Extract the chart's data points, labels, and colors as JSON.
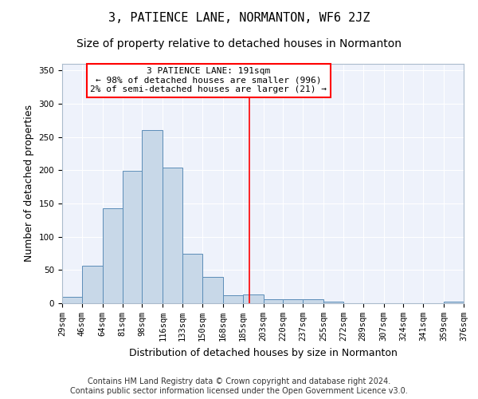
{
  "title": "3, PATIENCE LANE, NORMANTON, WF6 2JZ",
  "subtitle": "Size of property relative to detached houses in Normanton",
  "xlabel": "Distribution of detached houses by size in Normanton",
  "ylabel": "Number of detached properties",
  "bar_color": "#c8d8e8",
  "bar_edge_color": "#5b8db8",
  "background_color": "#eef2fb",
  "grid_color": "#ffffff",
  "vline_x": 191,
  "vline_color": "red",
  "annotation_text": "3 PATIENCE LANE: 191sqm\n← 98% of detached houses are smaller (996)\n2% of semi-detached houses are larger (21) →",
  "annotation_box_color": "white",
  "annotation_box_edge": "red",
  "bins": [
    29,
    46,
    64,
    81,
    98,
    116,
    133,
    150,
    168,
    185,
    203,
    220,
    237,
    255,
    272,
    289,
    307,
    324,
    341,
    359,
    376
  ],
  "bar_heights": [
    10,
    57,
    143,
    199,
    260,
    204,
    75,
    40,
    12,
    13,
    6,
    6,
    6,
    3,
    0,
    0,
    0,
    0,
    0,
    3
  ],
  "ylim": [
    0,
    360
  ],
  "yticks": [
    0,
    50,
    100,
    150,
    200,
    250,
    300,
    350
  ],
  "footer_text": "Contains HM Land Registry data © Crown copyright and database right 2024.\nContains public sector information licensed under the Open Government Licence v3.0.",
  "title_fontsize": 11,
  "subtitle_fontsize": 10,
  "tick_fontsize": 7.5,
  "label_fontsize": 9,
  "footer_fontsize": 7
}
